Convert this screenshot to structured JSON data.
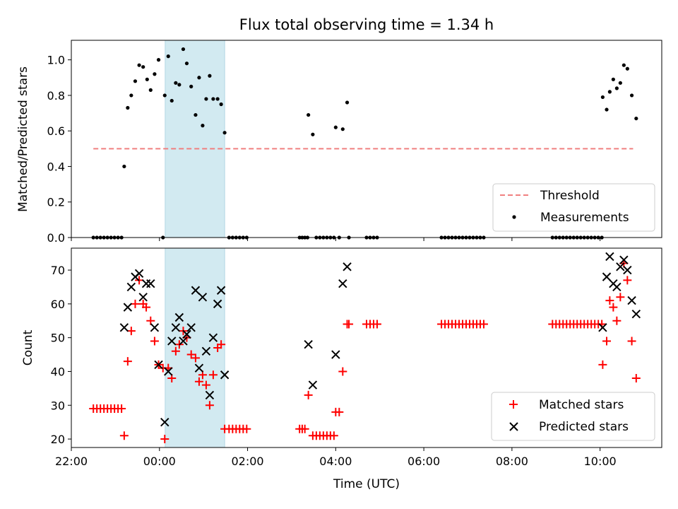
{
  "chart_data": [
    {
      "type": "scatter",
      "title": "Flux total observing time = 1.34 h",
      "ylabel": "Matched/Predicted stars",
      "xlabel": "",
      "xlim": [
        -2.0,
        11.4
      ],
      "ylim": [
        0,
        1.11
      ],
      "yticks": [
        "0.0",
        "0.2",
        "0.4",
        "0.6",
        "0.8",
        "1.0"
      ],
      "shaded_interval": [
        0.13,
        1.48
      ],
      "shaded_color": "#add8e6",
      "threshold": {
        "name": "Threshold",
        "y": 0.5,
        "x_range": [
          -1.5,
          10.75
        ],
        "color": "#f08080"
      },
      "series": [
        {
          "name": "Measurements",
          "color": "#000000",
          "points": [
            [
              -1.5,
              0
            ],
            [
              -1.42,
              0
            ],
            [
              -1.34,
              0
            ],
            [
              -1.26,
              0
            ],
            [
              -1.18,
              0
            ],
            [
              -1.1,
              0
            ],
            [
              -1.02,
              0
            ],
            [
              -0.94,
              0
            ],
            [
              -0.86,
              0
            ],
            [
              -0.8,
              0.4
            ],
            [
              -0.72,
              0.73
            ],
            [
              -0.64,
              0.8
            ],
            [
              -0.55,
              0.88
            ],
            [
              -0.46,
              0.97
            ],
            [
              -0.37,
              0.96
            ],
            [
              -0.28,
              0.89
            ],
            [
              -0.2,
              0.83
            ],
            [
              -0.11,
              0.92
            ],
            [
              -0.02,
              1.0
            ],
            [
              0.08,
              0.0
            ],
            [
              0.12,
              0.8
            ],
            [
              0.2,
              1.02
            ],
            [
              0.28,
              0.77
            ],
            [
              0.37,
              0.87
            ],
            [
              0.45,
              0.86
            ],
            [
              0.54,
              1.06
            ],
            [
              0.62,
              0.98
            ],
            [
              0.72,
              0.85
            ],
            [
              0.82,
              0.69
            ],
            [
              0.9,
              0.9
            ],
            [
              0.98,
              0.63
            ],
            [
              1.06,
              0.78
            ],
            [
              1.14,
              0.91
            ],
            [
              1.22,
              0.78
            ],
            [
              1.32,
              0.78
            ],
            [
              1.4,
              0.75
            ],
            [
              1.48,
              0.59
            ],
            [
              1.58,
              0
            ],
            [
              1.66,
              0
            ],
            [
              1.74,
              0
            ],
            [
              1.82,
              0
            ],
            [
              1.9,
              0
            ],
            [
              1.98,
              0
            ],
            [
              3.18,
              0
            ],
            [
              3.24,
              0
            ],
            [
              3.3,
              0
            ],
            [
              3.36,
              0
            ],
            [
              3.38,
              0.69
            ],
            [
              3.48,
              0.58
            ],
            [
              3.56,
              0
            ],
            [
              3.64,
              0
            ],
            [
              3.72,
              0
            ],
            [
              3.8,
              0
            ],
            [
              3.88,
              0
            ],
            [
              3.96,
              0
            ],
            [
              4.0,
              0.62
            ],
            [
              4.08,
              0
            ],
            [
              4.16,
              0.61
            ],
            [
              4.26,
              0.76
            ],
            [
              4.3,
              0
            ],
            [
              4.7,
              0
            ],
            [
              4.78,
              0
            ],
            [
              4.86,
              0
            ],
            [
              4.94,
              0
            ],
            [
              6.4,
              0
            ],
            [
              6.48,
              0
            ],
            [
              6.56,
              0
            ],
            [
              6.64,
              0
            ],
            [
              6.72,
              0
            ],
            [
              6.8,
              0
            ],
            [
              6.88,
              0
            ],
            [
              6.96,
              0
            ],
            [
              7.04,
              0
            ],
            [
              7.12,
              0
            ],
            [
              7.2,
              0
            ],
            [
              7.28,
              0
            ],
            [
              7.36,
              0
            ],
            [
              8.92,
              0
            ],
            [
              9.0,
              0
            ],
            [
              9.08,
              0
            ],
            [
              9.16,
              0
            ],
            [
              9.24,
              0
            ],
            [
              9.32,
              0
            ],
            [
              9.4,
              0
            ],
            [
              9.48,
              0
            ],
            [
              9.56,
              0
            ],
            [
              9.64,
              0
            ],
            [
              9.72,
              0
            ],
            [
              9.8,
              0
            ],
            [
              9.88,
              0
            ],
            [
              9.96,
              0
            ],
            [
              10.04,
              0
            ],
            [
              10.06,
              0.79
            ],
            [
              10.15,
              0.72
            ],
            [
              10.22,
              0.82
            ],
            [
              10.3,
              0.89
            ],
            [
              10.38,
              0.84
            ],
            [
              10.46,
              0.87
            ],
            [
              10.54,
              0.97
            ],
            [
              10.62,
              0.95
            ],
            [
              10.72,
              0.8
            ],
            [
              10.82,
              0.67
            ]
          ]
        }
      ],
      "legend": {
        "position": "lower right",
        "entries": [
          "Threshold",
          "Measurements"
        ]
      }
    },
    {
      "type": "scatter",
      "xlabel": "Time (UTC)",
      "ylabel": "Count",
      "xlim": [
        -2.0,
        11.4
      ],
      "ylim": [
        17.5,
        76.5
      ],
      "yticks": [
        "20",
        "30",
        "40",
        "50",
        "60",
        "70"
      ],
      "xticks": [
        {
          "v": -2,
          "label": "22:00"
        },
        {
          "v": 0,
          "label": "00:00"
        },
        {
          "v": 2,
          "label": "02:00"
        },
        {
          "v": 4,
          "label": "04:00"
        },
        {
          "v": 6,
          "label": "06:00"
        },
        {
          "v": 8,
          "label": "08:00"
        },
        {
          "v": 10,
          "label": "10:00"
        }
      ],
      "shaded_interval": [
        0.13,
        1.48
      ],
      "series": [
        {
          "name": "Matched stars",
          "marker": "plus",
          "color": "#ff0000",
          "points": [
            [
              -1.5,
              29
            ],
            [
              -1.42,
              29
            ],
            [
              -1.34,
              29
            ],
            [
              -1.26,
              29
            ],
            [
              -1.18,
              29
            ],
            [
              -1.1,
              29
            ],
            [
              -1.02,
              29
            ],
            [
              -0.94,
              29
            ],
            [
              -0.86,
              29
            ],
            [
              -0.8,
              21
            ],
            [
              -0.72,
              43
            ],
            [
              -0.64,
              52
            ],
            [
              -0.55,
              60
            ],
            [
              -0.46,
              67
            ],
            [
              -0.37,
              60
            ],
            [
              -0.3,
              59
            ],
            [
              -0.2,
              55
            ],
            [
              -0.11,
              49
            ],
            [
              -0.02,
              42
            ],
            [
              0.08,
              41
            ],
            [
              0.12,
              20
            ],
            [
              0.2,
              41
            ],
            [
              0.28,
              38
            ],
            [
              0.37,
              46
            ],
            [
              0.45,
              48
            ],
            [
              0.54,
              52
            ],
            [
              0.62,
              50
            ],
            [
              0.72,
              45
            ],
            [
              0.82,
              44
            ],
            [
              0.9,
              37
            ],
            [
              0.98,
              39
            ],
            [
              1.06,
              36
            ],
            [
              1.14,
              30
            ],
            [
              1.22,
              39
            ],
            [
              1.32,
              47
            ],
            [
              1.4,
              48
            ],
            [
              1.48,
              23
            ],
            [
              1.58,
              23
            ],
            [
              1.66,
              23
            ],
            [
              1.74,
              23
            ],
            [
              1.82,
              23
            ],
            [
              1.9,
              23
            ],
            [
              1.98,
              23
            ],
            [
              3.18,
              23
            ],
            [
              3.24,
              23
            ],
            [
              3.3,
              23
            ],
            [
              3.38,
              33
            ],
            [
              3.48,
              21
            ],
            [
              3.56,
              21
            ],
            [
              3.64,
              21
            ],
            [
              3.72,
              21
            ],
            [
              3.8,
              21
            ],
            [
              3.88,
              21
            ],
            [
              3.96,
              21
            ],
            [
              4.0,
              28
            ],
            [
              4.08,
              28
            ],
            [
              4.16,
              40
            ],
            [
              4.26,
              54
            ],
            [
              4.3,
              54
            ],
            [
              4.7,
              54
            ],
            [
              4.78,
              54
            ],
            [
              4.86,
              54
            ],
            [
              4.94,
              54
            ],
            [
              6.4,
              54
            ],
            [
              6.48,
              54
            ],
            [
              6.56,
              54
            ],
            [
              6.64,
              54
            ],
            [
              6.72,
              54
            ],
            [
              6.8,
              54
            ],
            [
              6.88,
              54
            ],
            [
              6.96,
              54
            ],
            [
              7.04,
              54
            ],
            [
              7.12,
              54
            ],
            [
              7.2,
              54
            ],
            [
              7.28,
              54
            ],
            [
              7.36,
              54
            ],
            [
              8.92,
              54
            ],
            [
              9.0,
              54
            ],
            [
              9.08,
              54
            ],
            [
              9.16,
              54
            ],
            [
              9.24,
              54
            ],
            [
              9.32,
              54
            ],
            [
              9.4,
              54
            ],
            [
              9.48,
              54
            ],
            [
              9.56,
              54
            ],
            [
              9.64,
              54
            ],
            [
              9.72,
              54
            ],
            [
              9.8,
              54
            ],
            [
              9.88,
              54
            ],
            [
              9.96,
              54
            ],
            [
              10.04,
              54
            ],
            [
              10.06,
              42
            ],
            [
              10.15,
              49
            ],
            [
              10.22,
              61
            ],
            [
              10.3,
              59
            ],
            [
              10.38,
              55
            ],
            [
              10.46,
              62
            ],
            [
              10.54,
              72
            ],
            [
              10.62,
              67
            ],
            [
              10.72,
              49
            ],
            [
              10.82,
              38
            ]
          ]
        },
        {
          "name": "Predicted stars",
          "marker": "x",
          "color": "#000000",
          "points": [
            [
              -0.8,
              53
            ],
            [
              -0.72,
              59
            ],
            [
              -0.64,
              65
            ],
            [
              -0.55,
              68
            ],
            [
              -0.46,
              69
            ],
            [
              -0.37,
              62
            ],
            [
              -0.3,
              66
            ],
            [
              -0.2,
              66
            ],
            [
              -0.11,
              53
            ],
            [
              -0.02,
              42
            ],
            [
              0.12,
              25
            ],
            [
              0.2,
              40
            ],
            [
              0.28,
              49
            ],
            [
              0.37,
              53
            ],
            [
              0.45,
              56
            ],
            [
              0.54,
              49
            ],
            [
              0.62,
              51
            ],
            [
              0.72,
              53
            ],
            [
              0.82,
              64
            ],
            [
              0.9,
              41
            ],
            [
              0.98,
              62
            ],
            [
              1.06,
              46
            ],
            [
              1.14,
              33
            ],
            [
              1.22,
              50
            ],
            [
              1.32,
              60
            ],
            [
              1.4,
              64
            ],
            [
              1.48,
              39
            ],
            [
              3.38,
              48
            ],
            [
              3.48,
              36
            ],
            [
              4.0,
              45
            ],
            [
              4.16,
              66
            ],
            [
              4.26,
              71
            ],
            [
              10.06,
              53
            ],
            [
              10.15,
              68
            ],
            [
              10.22,
              74
            ],
            [
              10.3,
              66
            ],
            [
              10.38,
              65
            ],
            [
              10.46,
              71
            ],
            [
              10.54,
              73
            ],
            [
              10.62,
              70
            ],
            [
              10.72,
              61
            ],
            [
              10.82,
              57
            ]
          ]
        }
      ],
      "legend": {
        "position": "lower right",
        "entries": [
          "Matched stars",
          "Predicted stars"
        ]
      }
    }
  ]
}
